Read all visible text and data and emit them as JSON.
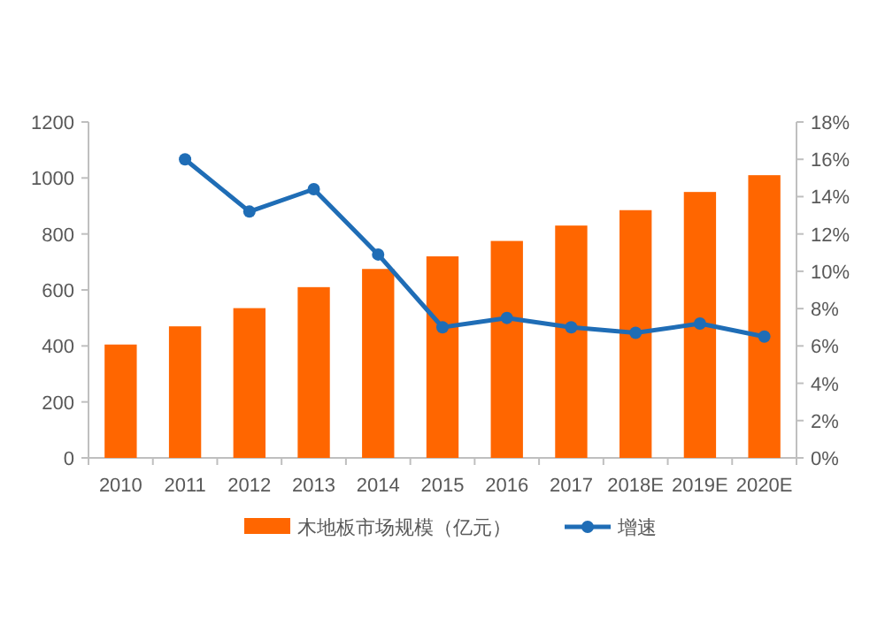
{
  "chart_data": {
    "type": "bar",
    "categories": [
      "2010",
      "2011",
      "2012",
      "2013",
      "2014",
      "2015",
      "2016",
      "2017",
      "2018E",
      "2019E",
      "2020E"
    ],
    "series": [
      {
        "name": "木地板市场规模（亿元）",
        "color": "#ff6600",
        "values": [
          405,
          470,
          535,
          610,
          675,
          720,
          775,
          830,
          885,
          950,
          1010
        ]
      },
      {
        "name": "增速",
        "type": "line",
        "axis": "y2",
        "color": "#1f6db6",
        "marker": "circle",
        "values": [
          null,
          16.0,
          13.2,
          14.4,
          10.9,
          7.0,
          7.5,
          7.0,
          6.7,
          7.2,
          6.5
        ]
      }
    ],
    "ylim": [
      0,
      1200
    ],
    "yticks": [
      0,
      200,
      400,
      600,
      800,
      1000,
      1200
    ],
    "y2lim": [
      0,
      18
    ],
    "y2ticks": [
      {
        "value": 0,
        "label": "0%"
      },
      {
        "value": 2,
        "label": "2%"
      },
      {
        "value": 4,
        "label": "4%"
      },
      {
        "value": 6,
        "label": "6%"
      },
      {
        "value": 8,
        "label": "8%"
      },
      {
        "value": 10,
        "label": "10%"
      },
      {
        "value": 12,
        "label": "12%"
      },
      {
        "value": 14,
        "label": "14%"
      },
      {
        "value": 16,
        "label": "16%"
      },
      {
        "value": 18,
        "label": "18%"
      }
    ],
    "grid": false,
    "legend": "bottom"
  }
}
